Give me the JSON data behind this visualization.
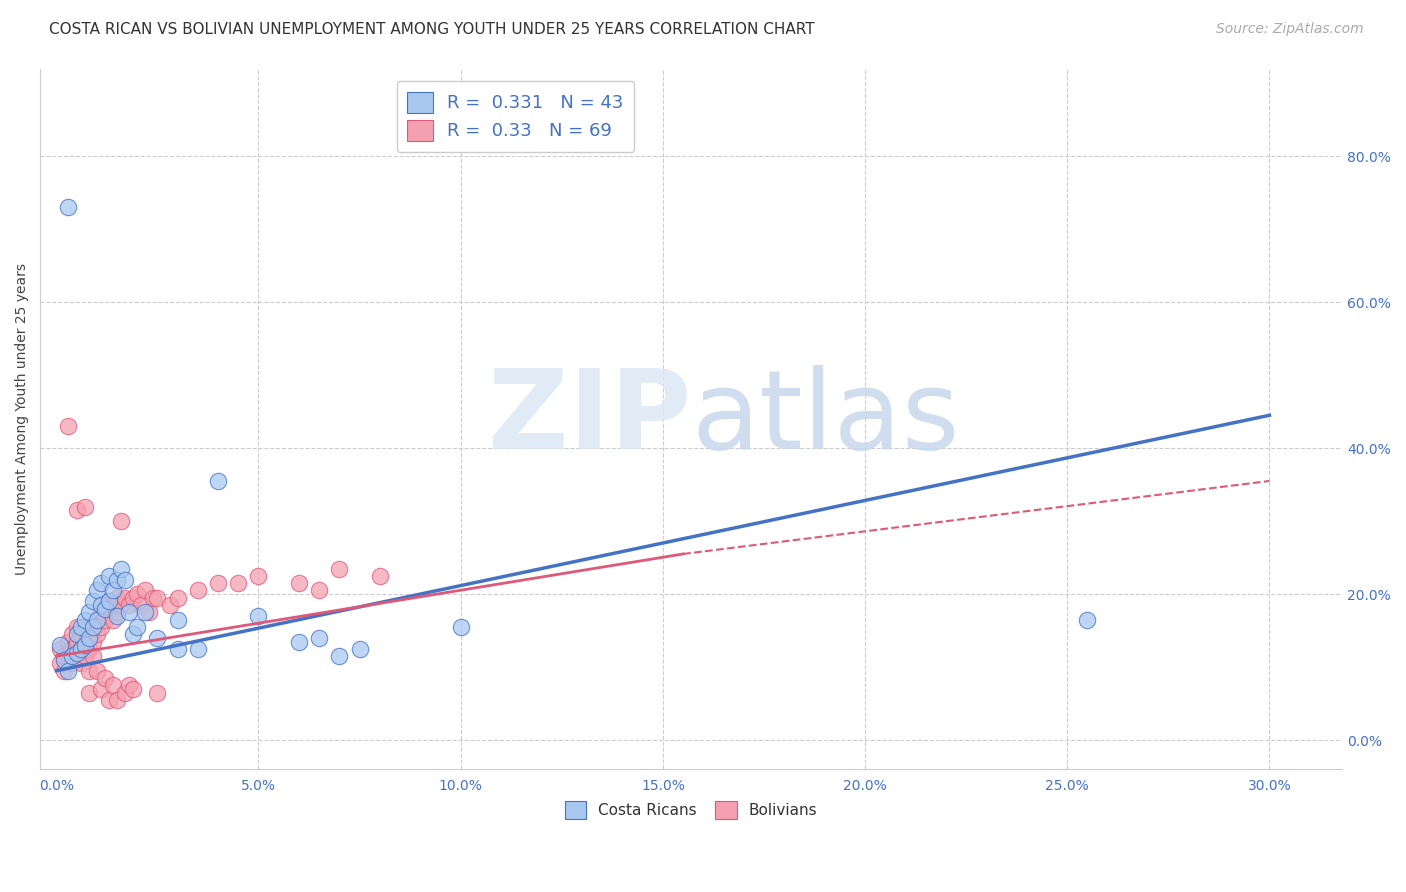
{
  "title": "COSTA RICAN VS BOLIVIAN UNEMPLOYMENT AMONG YOUTH UNDER 25 YEARS CORRELATION CHART",
  "source": "Source: ZipAtlas.com",
  "ylabel": "Unemployment Among Youth under 25 years",
  "xlabel_ticks": [
    "0.0%",
    "5.0%",
    "10.0%",
    "15.0%",
    "20.0%",
    "25.0%",
    "30.0%"
  ],
  "xlabel_vals": [
    0.0,
    0.05,
    0.1,
    0.15,
    0.2,
    0.25,
    0.3
  ],
  "ylabel_ticks": [
    "0.0%",
    "20.0%",
    "40.0%",
    "60.0%",
    "80.0%"
  ],
  "ylabel_vals": [
    0.0,
    0.2,
    0.4,
    0.6,
    0.8
  ],
  "xlim": [
    -0.004,
    0.318
  ],
  "ylim": [
    -0.04,
    0.92
  ],
  "cr_R": 0.331,
  "cr_N": 43,
  "bo_R": 0.33,
  "bo_N": 69,
  "cr_color": "#a8c8f0",
  "bo_color": "#f4a0b0",
  "cr_line_color": "#4472c4",
  "bo_line_color": "#e05878",
  "background_color": "#ffffff",
  "cr_line": [
    0.0,
    0.095,
    0.3,
    0.445
  ],
  "bo_line_solid": [
    0.0,
    0.115,
    0.155,
    0.255
  ],
  "bo_line_dash": [
    0.155,
    0.255,
    0.3,
    0.355
  ],
  "cr_scatter": [
    [
      0.001,
      0.13
    ],
    [
      0.002,
      0.11
    ],
    [
      0.003,
      0.095
    ],
    [
      0.003,
      0.73
    ],
    [
      0.004,
      0.115
    ],
    [
      0.005,
      0.12
    ],
    [
      0.005,
      0.145
    ],
    [
      0.006,
      0.125
    ],
    [
      0.006,
      0.155
    ],
    [
      0.007,
      0.13
    ],
    [
      0.007,
      0.165
    ],
    [
      0.008,
      0.14
    ],
    [
      0.008,
      0.175
    ],
    [
      0.009,
      0.155
    ],
    [
      0.009,
      0.19
    ],
    [
      0.01,
      0.165
    ],
    [
      0.01,
      0.205
    ],
    [
      0.011,
      0.185
    ],
    [
      0.011,
      0.215
    ],
    [
      0.012,
      0.18
    ],
    [
      0.013,
      0.19
    ],
    [
      0.013,
      0.225
    ],
    [
      0.014,
      0.205
    ],
    [
      0.015,
      0.17
    ],
    [
      0.015,
      0.22
    ],
    [
      0.016,
      0.235
    ],
    [
      0.017,
      0.22
    ],
    [
      0.018,
      0.175
    ],
    [
      0.019,
      0.145
    ],
    [
      0.02,
      0.155
    ],
    [
      0.022,
      0.175
    ],
    [
      0.025,
      0.14
    ],
    [
      0.03,
      0.165
    ],
    [
      0.03,
      0.125
    ],
    [
      0.035,
      0.125
    ],
    [
      0.04,
      0.355
    ],
    [
      0.05,
      0.17
    ],
    [
      0.06,
      0.135
    ],
    [
      0.065,
      0.14
    ],
    [
      0.07,
      0.115
    ],
    [
      0.075,
      0.125
    ],
    [
      0.1,
      0.155
    ],
    [
      0.255,
      0.165
    ]
  ],
  "bo_scatter": [
    [
      0.001,
      0.125
    ],
    [
      0.001,
      0.105
    ],
    [
      0.002,
      0.115
    ],
    [
      0.002,
      0.095
    ],
    [
      0.003,
      0.135
    ],
    [
      0.003,
      0.115
    ],
    [
      0.003,
      0.43
    ],
    [
      0.004,
      0.145
    ],
    [
      0.004,
      0.125
    ],
    [
      0.004,
      0.105
    ],
    [
      0.005,
      0.315
    ],
    [
      0.005,
      0.155
    ],
    [
      0.005,
      0.135
    ],
    [
      0.006,
      0.145
    ],
    [
      0.006,
      0.125
    ],
    [
      0.006,
      0.105
    ],
    [
      0.007,
      0.155
    ],
    [
      0.007,
      0.135
    ],
    [
      0.007,
      0.115
    ],
    [
      0.007,
      0.32
    ],
    [
      0.008,
      0.145
    ],
    [
      0.008,
      0.125
    ],
    [
      0.008,
      0.095
    ],
    [
      0.008,
      0.065
    ],
    [
      0.009,
      0.155
    ],
    [
      0.009,
      0.135
    ],
    [
      0.009,
      0.115
    ],
    [
      0.01,
      0.165
    ],
    [
      0.01,
      0.145
    ],
    [
      0.01,
      0.095
    ],
    [
      0.011,
      0.175
    ],
    [
      0.011,
      0.155
    ],
    [
      0.011,
      0.07
    ],
    [
      0.012,
      0.185
    ],
    [
      0.012,
      0.165
    ],
    [
      0.012,
      0.085
    ],
    [
      0.013,
      0.19
    ],
    [
      0.013,
      0.055
    ],
    [
      0.014,
      0.185
    ],
    [
      0.014,
      0.165
    ],
    [
      0.014,
      0.075
    ],
    [
      0.015,
      0.195
    ],
    [
      0.015,
      0.175
    ],
    [
      0.015,
      0.055
    ],
    [
      0.016,
      0.185
    ],
    [
      0.016,
      0.3
    ],
    [
      0.017,
      0.195
    ],
    [
      0.017,
      0.065
    ],
    [
      0.018,
      0.185
    ],
    [
      0.018,
      0.075
    ],
    [
      0.019,
      0.195
    ],
    [
      0.019,
      0.07
    ],
    [
      0.02,
      0.2
    ],
    [
      0.021,
      0.185
    ],
    [
      0.022,
      0.205
    ],
    [
      0.023,
      0.175
    ],
    [
      0.024,
      0.195
    ],
    [
      0.025,
      0.195
    ],
    [
      0.025,
      0.065
    ],
    [
      0.028,
      0.185
    ],
    [
      0.03,
      0.195
    ],
    [
      0.035,
      0.205
    ],
    [
      0.04,
      0.215
    ],
    [
      0.045,
      0.215
    ],
    [
      0.05,
      0.225
    ],
    [
      0.06,
      0.215
    ],
    [
      0.065,
      0.205
    ],
    [
      0.07,
      0.235
    ],
    [
      0.08,
      0.225
    ]
  ],
  "title_fontsize": 11,
  "axis_label_fontsize": 10,
  "tick_fontsize": 10,
  "legend_fontsize": 13,
  "source_fontsize": 10
}
